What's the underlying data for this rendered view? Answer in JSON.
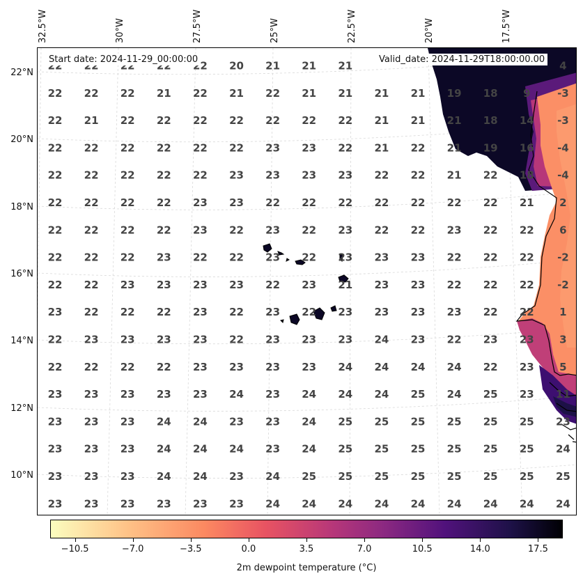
{
  "header": {
    "start_date": "Start date: 2024-11-29_00:00:00",
    "valid_date": "Valid_date: 2024-11-29T18:00:00.00"
  },
  "axes": {
    "lon_labels": [
      "32.5°W",
      "30°W",
      "27.5°W",
      "25°W",
      "22.5°W",
      "20°W",
      "17.5°W"
    ],
    "lat_labels": [
      "22°N",
      "20°N",
      "18°N",
      "16°N",
      "14°N",
      "12°N",
      "10°N"
    ]
  },
  "colorbar": {
    "label": "2m dewpoint temperature ($^{\\circ}$C)",
    "label_display": "2m dewpoint temperature (°C)",
    "ticks": [
      "−10.5",
      "−7.0",
      "−3.5",
      "0.0",
      "3.5",
      "7.0",
      "10.5",
      "14.0",
      "17.5"
    ],
    "colormap": "magma_r",
    "range": [
      -12,
      19
    ]
  },
  "grid_values": [
    [
      "22",
      "22",
      "22",
      "22",
      "22",
      "20",
      "21",
      "21",
      "21",
      "",
      "",
      "",
      "",
      "",
      "4"
    ],
    [
      "22",
      "22",
      "22",
      "21",
      "22",
      "21",
      "22",
      "21",
      "21",
      "21",
      "21",
      "19",
      "18",
      "9",
      "-3"
    ],
    [
      "22",
      "21",
      "22",
      "22",
      "22",
      "22",
      "22",
      "22",
      "22",
      "21",
      "21",
      "21",
      "18",
      "14",
      "-3"
    ],
    [
      "22",
      "22",
      "22",
      "22",
      "22",
      "22",
      "23",
      "23",
      "22",
      "21",
      "22",
      "21",
      "19",
      "16",
      "-4"
    ],
    [
      "22",
      "22",
      "22",
      "22",
      "22",
      "23",
      "23",
      "23",
      "23",
      "22",
      "22",
      "21",
      "22",
      "18",
      "-4"
    ],
    [
      "22",
      "22",
      "22",
      "22",
      "23",
      "23",
      "22",
      "22",
      "22",
      "22",
      "22",
      "22",
      "22",
      "21",
      "2"
    ],
    [
      "22",
      "22",
      "22",
      "22",
      "23",
      "22",
      "23",
      "22",
      "23",
      "22",
      "22",
      "23",
      "22",
      "22",
      "6"
    ],
    [
      "22",
      "22",
      "22",
      "23",
      "22",
      "22",
      "23",
      "22",
      "23",
      "23",
      "23",
      "22",
      "22",
      "22",
      "-2"
    ],
    [
      "22",
      "22",
      "23",
      "23",
      "23",
      "23",
      "22",
      "23",
      "21",
      "23",
      "23",
      "22",
      "22",
      "22",
      "-2"
    ],
    [
      "23",
      "22",
      "22",
      "22",
      "23",
      "22",
      "23",
      "22",
      "23",
      "23",
      "23",
      "23",
      "22",
      "22",
      "1"
    ],
    [
      "22",
      "23",
      "23",
      "23",
      "23",
      "22",
      "23",
      "23",
      "23",
      "24",
      "23",
      "22",
      "23",
      "23",
      "3"
    ],
    [
      "22",
      "22",
      "22",
      "22",
      "23",
      "23",
      "23",
      "23",
      "24",
      "24",
      "24",
      "24",
      "22",
      "23",
      "5"
    ],
    [
      "23",
      "23",
      "23",
      "23",
      "23",
      "24",
      "23",
      "24",
      "24",
      "24",
      "25",
      "24",
      "25",
      "23",
      "11"
    ],
    [
      "23",
      "23",
      "23",
      "24",
      "24",
      "23",
      "23",
      "24",
      "25",
      "25",
      "25",
      "25",
      "25",
      "25",
      "23"
    ],
    [
      "23",
      "23",
      "23",
      "24",
      "24",
      "24",
      "23",
      "24",
      "25",
      "25",
      "25",
      "25",
      "25",
      "25",
      "24"
    ],
    [
      "23",
      "23",
      "23",
      "24",
      "24",
      "23",
      "24",
      "25",
      "25",
      "25",
      "25",
      "25",
      "25",
      "25",
      "25"
    ],
    [
      "23",
      "23",
      "23",
      "23",
      "23",
      "23",
      "24",
      "24",
      "24",
      "24",
      "24",
      "24",
      "24",
      "24",
      "24"
    ]
  ],
  "colors": {
    "value_text": "#444444",
    "land_dark": "#0c0826",
    "coast_orange": "#fb8f66"
  }
}
